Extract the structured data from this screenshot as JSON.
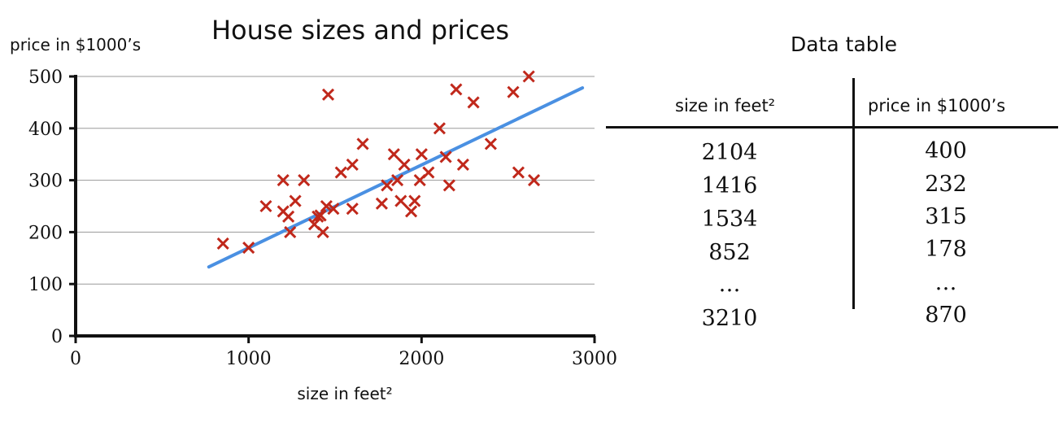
{
  "chart_data": {
    "type": "scatter",
    "title": "House sizes and prices",
    "xlabel": "size in feet²",
    "ylabel": "price in $1000’s",
    "xlim": [
      0,
      3000
    ],
    "ylim": [
      0,
      500
    ],
    "xticks": [
      "0",
      "1000",
      "2000",
      "3000"
    ],
    "yticks": [
      "0",
      "100",
      "200",
      "300",
      "400",
      "500"
    ],
    "grid": "horizontal",
    "marker": "x",
    "marker_color": "#c0281b",
    "line_color": "#4a90e2",
    "points": [
      {
        "x": 852,
        "y": 178
      },
      {
        "x": 1000,
        "y": 170
      },
      {
        "x": 1100,
        "y": 250
      },
      {
        "x": 1200,
        "y": 300
      },
      {
        "x": 1200,
        "y": 240
      },
      {
        "x": 1230,
        "y": 230
      },
      {
        "x": 1240,
        "y": 200
      },
      {
        "x": 1270,
        "y": 260
      },
      {
        "x": 1320,
        "y": 300
      },
      {
        "x": 1380,
        "y": 215
      },
      {
        "x": 1400,
        "y": 230
      },
      {
        "x": 1416,
        "y": 232
      },
      {
        "x": 1430,
        "y": 200
      },
      {
        "x": 1450,
        "y": 250
      },
      {
        "x": 1460,
        "y": 465
      },
      {
        "x": 1490,
        "y": 245
      },
      {
        "x": 1534,
        "y": 315
      },
      {
        "x": 1600,
        "y": 330
      },
      {
        "x": 1600,
        "y": 245
      },
      {
        "x": 1660,
        "y": 370
      },
      {
        "x": 1770,
        "y": 255
      },
      {
        "x": 1800,
        "y": 290
      },
      {
        "x": 1840,
        "y": 350
      },
      {
        "x": 1860,
        "y": 300
      },
      {
        "x": 1880,
        "y": 260
      },
      {
        "x": 1900,
        "y": 330
      },
      {
        "x": 1940,
        "y": 240
      },
      {
        "x": 1960,
        "y": 260
      },
      {
        "x": 1990,
        "y": 300
      },
      {
        "x": 2000,
        "y": 350
      },
      {
        "x": 2040,
        "y": 315
      },
      {
        "x": 2104,
        "y": 400
      },
      {
        "x": 2140,
        "y": 345
      },
      {
        "x": 2160,
        "y": 290
      },
      {
        "x": 2200,
        "y": 475
      },
      {
        "x": 2240,
        "y": 330
      },
      {
        "x": 2300,
        "y": 450
      },
      {
        "x": 2400,
        "y": 370
      },
      {
        "x": 2530,
        "y": 470
      },
      {
        "x": 2560,
        "y": 315
      },
      {
        "x": 2620,
        "y": 500
      },
      {
        "x": 2650,
        "y": 300
      }
    ],
    "fit_line": {
      "x": [
        770,
        2930
      ],
      "y": [
        133,
        478
      ]
    }
  },
  "table": {
    "title": "Data table",
    "headers": [
      "size in feet²",
      "price in $1000’s"
    ],
    "rows": [
      [
        "2104",
        "400"
      ],
      [
        "1416",
        "232"
      ],
      [
        "1534",
        "315"
      ],
      [
        "852",
        "178"
      ],
      [
        "…",
        "…"
      ],
      [
        "3210",
        "870"
      ]
    ]
  }
}
